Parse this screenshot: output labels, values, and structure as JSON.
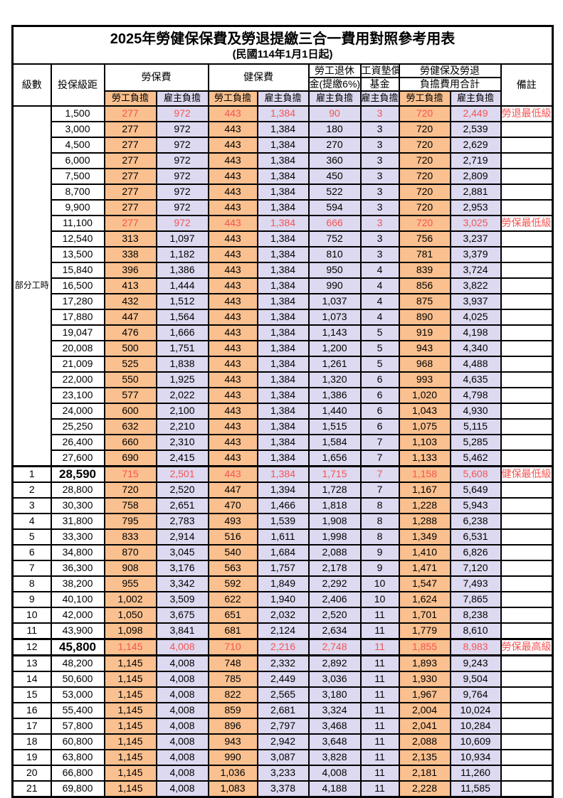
{
  "title": "2025年勞健保保費及勞退提繳三合一費用對照參考用表",
  "subtitle": "(民國114年1月1日起)",
  "columns": {
    "level": "級數",
    "bracket": "投保級距",
    "labor_insurance": "勞保費",
    "health_insurance": "健保費",
    "pension_line1": "勞工退休",
    "pension_line2": "金(提繳6%)",
    "wage_fund_line1": "工資墊償",
    "wage_fund_line2": "基金",
    "total_line1": "勞健保及勞退",
    "total_line2": "負擔費用合計",
    "remark": "備註",
    "employee_share": "勞工負擔",
    "employer_share": "雇主負擔"
  },
  "part_time": {
    "label": "部分工時",
    "row_span": 23
  },
  "colors": {
    "employee_bg": "#FAC08F",
    "employer_bg": "#DCD9F0",
    "highlight_red": "#F75353",
    "border": "#000000"
  },
  "rows": [
    {
      "level": "",
      "bracket": "1,500",
      "values": [
        "277",
        "972",
        "443",
        "1,384",
        "90",
        "3",
        "720",
        "2,449"
      ],
      "remark": "勞退最低級距",
      "highlight": true
    },
    {
      "level": "",
      "bracket": "3,000",
      "values": [
        "277",
        "972",
        "443",
        "1,384",
        "180",
        "3",
        "720",
        "2,539"
      ],
      "remark": ""
    },
    {
      "level": "",
      "bracket": "4,500",
      "values": [
        "277",
        "972",
        "443",
        "1,384",
        "270",
        "3",
        "720",
        "2,629"
      ],
      "remark": ""
    },
    {
      "level": "",
      "bracket": "6,000",
      "values": [
        "277",
        "972",
        "443",
        "1,384",
        "360",
        "3",
        "720",
        "2,719"
      ],
      "remark": ""
    },
    {
      "level": "",
      "bracket": "7,500",
      "values": [
        "277",
        "972",
        "443",
        "1,384",
        "450",
        "3",
        "720",
        "2,809"
      ],
      "remark": ""
    },
    {
      "level": "",
      "bracket": "8,700",
      "values": [
        "277",
        "972",
        "443",
        "1,384",
        "522",
        "3",
        "720",
        "2,881"
      ],
      "remark": ""
    },
    {
      "level": "",
      "bracket": "9,900",
      "values": [
        "277",
        "972",
        "443",
        "1,384",
        "594",
        "3",
        "720",
        "2,953"
      ],
      "remark": ""
    },
    {
      "level": "",
      "bracket": "11,100",
      "values": [
        "277",
        "972",
        "443",
        "1,384",
        "666",
        "3",
        "720",
        "3,025"
      ],
      "remark": "勞保最低級距",
      "highlight": true
    },
    {
      "level": "",
      "bracket": "12,540",
      "values": [
        "313",
        "1,097",
        "443",
        "1,384",
        "752",
        "3",
        "756",
        "3,237"
      ],
      "remark": ""
    },
    {
      "level": "",
      "bracket": "13,500",
      "values": [
        "338",
        "1,182",
        "443",
        "1,384",
        "810",
        "3",
        "781",
        "3,379"
      ],
      "remark": ""
    },
    {
      "level": "",
      "bracket": "15,840",
      "values": [
        "396",
        "1,386",
        "443",
        "1,384",
        "950",
        "4",
        "839",
        "3,724"
      ],
      "remark": ""
    },
    {
      "level": "",
      "bracket": "16,500",
      "values": [
        "413",
        "1,444",
        "443",
        "1,384",
        "990",
        "4",
        "856",
        "3,822"
      ],
      "remark": ""
    },
    {
      "level": "",
      "bracket": "17,280",
      "values": [
        "432",
        "1,512",
        "443",
        "1,384",
        "1,037",
        "4",
        "875",
        "3,937"
      ],
      "remark": ""
    },
    {
      "level": "",
      "bracket": "17,880",
      "values": [
        "447",
        "1,564",
        "443",
        "1,384",
        "1,073",
        "4",
        "890",
        "4,025"
      ],
      "remark": ""
    },
    {
      "level": "",
      "bracket": "19,047",
      "values": [
        "476",
        "1,666",
        "443",
        "1,384",
        "1,143",
        "5",
        "919",
        "4,198"
      ],
      "remark": ""
    },
    {
      "level": "",
      "bracket": "20,008",
      "values": [
        "500",
        "1,751",
        "443",
        "1,384",
        "1,200",
        "5",
        "943",
        "4,340"
      ],
      "remark": ""
    },
    {
      "level": "",
      "bracket": "21,009",
      "values": [
        "525",
        "1,838",
        "443",
        "1,384",
        "1,261",
        "5",
        "968",
        "4,488"
      ],
      "remark": ""
    },
    {
      "level": "",
      "bracket": "22,000",
      "values": [
        "550",
        "1,925",
        "443",
        "1,384",
        "1,320",
        "6",
        "993",
        "4,635"
      ],
      "remark": ""
    },
    {
      "level": "",
      "bracket": "23,100",
      "values": [
        "577",
        "2,022",
        "443",
        "1,384",
        "1,386",
        "6",
        "1,020",
        "4,798"
      ],
      "remark": ""
    },
    {
      "level": "",
      "bracket": "24,000",
      "values": [
        "600",
        "2,100",
        "443",
        "1,384",
        "1,440",
        "6",
        "1,043",
        "4,930"
      ],
      "remark": ""
    },
    {
      "level": "",
      "bracket": "25,250",
      "values": [
        "632",
        "2,210",
        "443",
        "1,384",
        "1,515",
        "6",
        "1,075",
        "5,115"
      ],
      "remark": ""
    },
    {
      "level": "",
      "bracket": "26,400",
      "values": [
        "660",
        "2,310",
        "443",
        "1,384",
        "1,584",
        "7",
        "1,103",
        "5,285"
      ],
      "remark": ""
    },
    {
      "level": "",
      "bracket": "27,600",
      "values": [
        "690",
        "2,415",
        "443",
        "1,384",
        "1,656",
        "7",
        "1,133",
        "5,462"
      ],
      "remark": ""
    },
    {
      "level": "1",
      "bracket": "28,590",
      "values": [
        "715",
        "2,501",
        "443",
        "1,384",
        "1,715",
        "7",
        "1,158",
        "5,608"
      ],
      "remark": "健保最低級距",
      "highlight": true,
      "big_bracket": true,
      "thick_top": true
    },
    {
      "level": "2",
      "bracket": "28,800",
      "values": [
        "720",
        "2,520",
        "447",
        "1,394",
        "1,728",
        "7",
        "1,167",
        "5,649"
      ],
      "remark": ""
    },
    {
      "level": "3",
      "bracket": "30,300",
      "values": [
        "758",
        "2,651",
        "470",
        "1,466",
        "1,818",
        "8",
        "1,228",
        "5,943"
      ],
      "remark": ""
    },
    {
      "level": "4",
      "bracket": "31,800",
      "values": [
        "795",
        "2,783",
        "493",
        "1,539",
        "1,908",
        "8",
        "1,288",
        "6,238"
      ],
      "remark": ""
    },
    {
      "level": "5",
      "bracket": "33,300",
      "values": [
        "833",
        "2,914",
        "516",
        "1,611",
        "1,998",
        "8",
        "1,349",
        "6,531"
      ],
      "remark": ""
    },
    {
      "level": "6",
      "bracket": "34,800",
      "values": [
        "870",
        "3,045",
        "540",
        "1,684",
        "2,088",
        "9",
        "1,410",
        "6,826"
      ],
      "remark": ""
    },
    {
      "level": "7",
      "bracket": "36,300",
      "values": [
        "908",
        "3,176",
        "563",
        "1,757",
        "2,178",
        "9",
        "1,471",
        "7,120"
      ],
      "remark": ""
    },
    {
      "level": "8",
      "bracket": "38,200",
      "values": [
        "955",
        "3,342",
        "592",
        "1,849",
        "2,292",
        "10",
        "1,547",
        "7,493"
      ],
      "remark": ""
    },
    {
      "level": "9",
      "bracket": "40,100",
      "values": [
        "1,002",
        "3,509",
        "622",
        "1,940",
        "2,406",
        "10",
        "1,624",
        "7,865"
      ],
      "remark": ""
    },
    {
      "level": "10",
      "bracket": "42,000",
      "values": [
        "1,050",
        "3,675",
        "651",
        "2,032",
        "2,520",
        "11",
        "1,701",
        "8,238"
      ],
      "remark": ""
    },
    {
      "level": "11",
      "bracket": "43,900",
      "values": [
        "1,098",
        "3,841",
        "681",
        "2,124",
        "2,634",
        "11",
        "1,779",
        "8,610"
      ],
      "remark": ""
    },
    {
      "level": "12",
      "bracket": "45,800",
      "values": [
        "1,145",
        "4,008",
        "710",
        "2,216",
        "2,748",
        "11",
        "1,855",
        "8,983"
      ],
      "remark": "勞保最高級距",
      "highlight": true,
      "big_bracket": true,
      "thick_top": true,
      "thick_bottom": true
    },
    {
      "level": "13",
      "bracket": "48,200",
      "values": [
        "1,145",
        "4,008",
        "748",
        "2,332",
        "2,892",
        "11",
        "1,893",
        "9,243"
      ],
      "remark": ""
    },
    {
      "level": "14",
      "bracket": "50,600",
      "values": [
        "1,145",
        "4,008",
        "785",
        "2,449",
        "3,036",
        "11",
        "1,930",
        "9,504"
      ],
      "remark": ""
    },
    {
      "level": "15",
      "bracket": "53,000",
      "values": [
        "1,145",
        "4,008",
        "822",
        "2,565",
        "3,180",
        "11",
        "1,967",
        "9,764"
      ],
      "remark": ""
    },
    {
      "level": "16",
      "bracket": "55,400",
      "values": [
        "1,145",
        "4,008",
        "859",
        "2,681",
        "3,324",
        "11",
        "2,004",
        "10,024"
      ],
      "remark": ""
    },
    {
      "level": "17",
      "bracket": "57,800",
      "values": [
        "1,145",
        "4,008",
        "896",
        "2,797",
        "3,468",
        "11",
        "2,041",
        "10,284"
      ],
      "remark": ""
    },
    {
      "level": "18",
      "bracket": "60,800",
      "values": [
        "1,145",
        "4,008",
        "943",
        "2,942",
        "3,648",
        "11",
        "2,088",
        "10,609"
      ],
      "remark": ""
    },
    {
      "level": "19",
      "bracket": "63,800",
      "values": [
        "1,145",
        "4,008",
        "990",
        "3,087",
        "3,828",
        "11",
        "2,135",
        "10,934"
      ],
      "remark": ""
    },
    {
      "level": "20",
      "bracket": "66,800",
      "values": [
        "1,145",
        "4,008",
        "1,036",
        "3,233",
        "4,008",
        "11",
        "2,181",
        "11,260"
      ],
      "remark": ""
    },
    {
      "level": "21",
      "bracket": "69,800",
      "values": [
        "1,145",
        "4,008",
        "1,083",
        "3,378",
        "4,188",
        "11",
        "2,228",
        "11,585"
      ],
      "remark": ""
    }
  ]
}
